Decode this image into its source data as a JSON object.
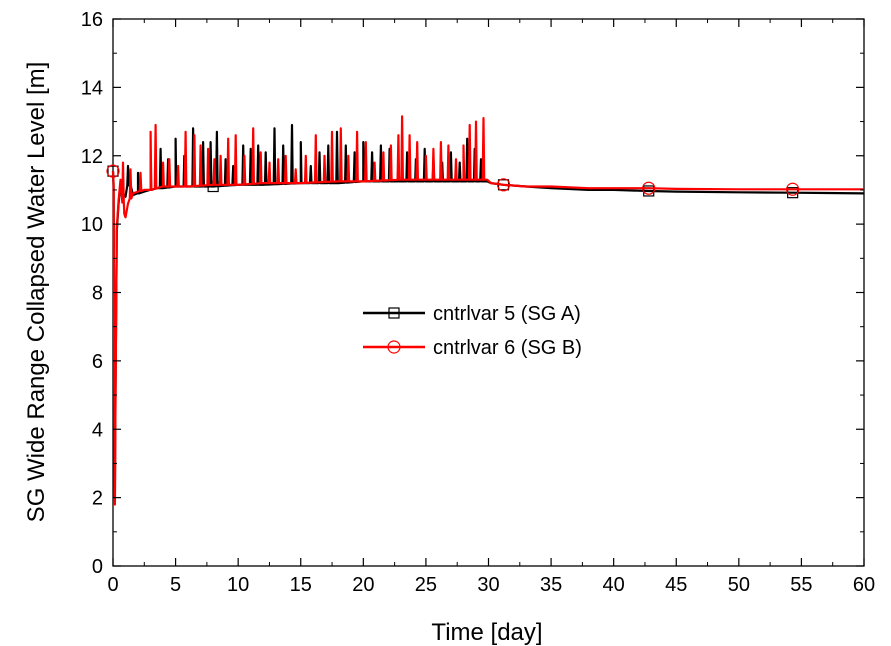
{
  "chart_data": {
    "type": "line",
    "title": "",
    "xlabel": "Time [day]",
    "ylabel": "SG Wide Range Collapsed Water Level [m]",
    "xlim": [
      0,
      60
    ],
    "ylim": [
      0,
      16
    ],
    "x_ticks": [
      0,
      5,
      10,
      15,
      20,
      25,
      30,
      35,
      40,
      45,
      50,
      55,
      60
    ],
    "y_ticks": [
      0,
      2,
      4,
      6,
      8,
      10,
      12,
      14,
      16
    ],
    "grid": false,
    "legend_position": "center",
    "series": [
      {
        "name": "cntrlvar 5 (SG A)",
        "color": "#000000",
        "marker": "square",
        "points": [
          [
            0,
            11.55
          ],
          [
            0.05,
            11.1
          ],
          [
            0.1,
            6.0
          ],
          [
            0.15,
            2.0
          ],
          [
            0.2,
            5.0
          ],
          [
            0.3,
            9.8
          ],
          [
            0.45,
            10.6
          ],
          [
            0.6,
            11.2
          ],
          [
            0.8,
            10.9
          ],
          [
            1.0,
            10.8
          ],
          [
            1.3,
            11.3
          ],
          [
            1.6,
            10.85
          ],
          [
            2.0,
            10.9
          ],
          [
            2.5,
            10.95
          ],
          [
            3.0,
            11.0
          ],
          [
            3.5,
            11.05
          ],
          [
            4.0,
            11.05
          ],
          [
            5.0,
            11.1
          ],
          [
            6.0,
            11.1
          ],
          [
            8.0,
            11.1
          ],
          [
            10.0,
            11.15
          ],
          [
            12.0,
            11.15
          ],
          [
            15.0,
            11.2
          ],
          [
            18.0,
            11.2
          ],
          [
            20.0,
            11.25
          ],
          [
            23.0,
            11.25
          ],
          [
            25.0,
            11.25
          ],
          [
            28.0,
            11.25
          ],
          [
            29.9,
            11.25
          ],
          [
            30.2,
            11.2
          ],
          [
            31.2,
            11.15
          ],
          [
            33.0,
            11.1
          ],
          [
            35.0,
            11.05
          ],
          [
            38.0,
            11.0
          ],
          [
            40.0,
            11.0
          ],
          [
            42.8,
            10.97
          ],
          [
            45.0,
            10.95
          ],
          [
            50.0,
            10.93
          ],
          [
            54.3,
            10.92
          ],
          [
            57.0,
            10.91
          ],
          [
            60.0,
            10.9
          ]
        ],
        "spikes": [
          [
            1.2,
            11.7
          ],
          [
            2.0,
            11.5
          ],
          [
            3.0,
            11.8
          ],
          [
            3.8,
            12.2
          ],
          [
            4.4,
            11.9
          ],
          [
            5.0,
            12.5
          ],
          [
            5.7,
            12.0
          ],
          [
            6.4,
            12.8
          ],
          [
            7.2,
            12.4
          ],
          [
            7.8,
            12.4
          ],
          [
            8.3,
            12.7
          ],
          [
            9.0,
            11.9
          ],
          [
            9.6,
            11.7
          ],
          [
            10.4,
            12.3
          ],
          [
            11.0,
            12.2
          ],
          [
            11.6,
            12.3
          ],
          [
            12.2,
            12.1
          ],
          [
            12.9,
            12.8
          ],
          [
            13.6,
            12.3
          ],
          [
            14.3,
            12.9
          ],
          [
            15.0,
            12.4
          ],
          [
            15.8,
            11.7
          ],
          [
            16.5,
            12.1
          ],
          [
            17.2,
            12.3
          ],
          [
            17.9,
            12.7
          ],
          [
            18.6,
            12.3
          ],
          [
            19.3,
            12.1
          ],
          [
            20.0,
            12.4
          ],
          [
            20.7,
            12.1
          ],
          [
            21.4,
            12.3
          ],
          [
            22.1,
            12.2
          ],
          [
            22.8,
            11.8
          ],
          [
            23.5,
            12.1
          ],
          [
            24.2,
            11.9
          ],
          [
            24.9,
            12.2
          ],
          [
            25.6,
            11.9
          ],
          [
            26.3,
            11.8
          ],
          [
            27.0,
            12.1
          ],
          [
            27.7,
            11.8
          ],
          [
            28.3,
            12.5
          ],
          [
            28.9,
            12.2
          ],
          [
            29.4,
            11.9
          ]
        ],
        "markers_x": [
          0,
          8.0,
          31.2,
          42.8,
          54.3
        ]
      },
      {
        "name": "cntrlvar 6 (SG B)",
        "color": "#ff0000",
        "marker": "circle",
        "points": [
          [
            0,
            11.55
          ],
          [
            0.05,
            11.2
          ],
          [
            0.1,
            5.5
          ],
          [
            0.15,
            1.8
          ],
          [
            0.2,
            4.8
          ],
          [
            0.3,
            9.9
          ],
          [
            0.45,
            10.7
          ],
          [
            0.6,
            11.3
          ],
          [
            0.9,
            10.3
          ],
          [
            1.0,
            10.2
          ],
          [
            1.2,
            10.6
          ],
          [
            1.6,
            10.9
          ],
          [
            2.0,
            10.95
          ],
          [
            2.5,
            11.0
          ],
          [
            3.0,
            11.0
          ],
          [
            3.5,
            11.05
          ],
          [
            4.0,
            11.1
          ],
          [
            5.0,
            11.1
          ],
          [
            6.0,
            11.1
          ],
          [
            8.0,
            11.15
          ],
          [
            10.0,
            11.15
          ],
          [
            12.0,
            11.2
          ],
          [
            15.0,
            11.2
          ],
          [
            18.0,
            11.25
          ],
          [
            20.0,
            11.25
          ],
          [
            23.0,
            11.3
          ],
          [
            25.0,
            11.3
          ],
          [
            28.0,
            11.3
          ],
          [
            29.9,
            11.3
          ],
          [
            30.2,
            11.2
          ],
          [
            31.2,
            11.15
          ],
          [
            33.0,
            11.1
          ],
          [
            35.0,
            11.1
          ],
          [
            38.0,
            11.05
          ],
          [
            40.0,
            11.05
          ],
          [
            42.8,
            11.05
          ],
          [
            45.0,
            11.03
          ],
          [
            50.0,
            11.02
          ],
          [
            54.3,
            11.02
          ],
          [
            57.0,
            11.02
          ],
          [
            60.0,
            11.02
          ]
        ],
        "spikes": [
          [
            0.8,
            11.8
          ],
          [
            1.4,
            11.6
          ],
          [
            2.2,
            11.5
          ],
          [
            3.0,
            12.7
          ],
          [
            3.4,
            12.9
          ],
          [
            4.0,
            11.8
          ],
          [
            4.5,
            11.9
          ],
          [
            5.2,
            11.7
          ],
          [
            5.8,
            12.7
          ],
          [
            6.5,
            12.6
          ],
          [
            7.0,
            12.3
          ],
          [
            7.6,
            12.2
          ],
          [
            8.1,
            11.9
          ],
          [
            8.6,
            12.0
          ],
          [
            9.2,
            12.5
          ],
          [
            9.8,
            12.6
          ],
          [
            10.5,
            12.0
          ],
          [
            11.2,
            12.8
          ],
          [
            11.8,
            12.1
          ],
          [
            12.5,
            11.8
          ],
          [
            13.2,
            11.9
          ],
          [
            13.8,
            12.0
          ],
          [
            14.6,
            11.6
          ],
          [
            15.4,
            12.0
          ],
          [
            16.2,
            12.6
          ],
          [
            16.9,
            12.0
          ],
          [
            17.5,
            12.7
          ],
          [
            18.2,
            12.8
          ],
          [
            18.8,
            12.0
          ],
          [
            19.5,
            12.7
          ],
          [
            20.2,
            12.4
          ],
          [
            20.9,
            11.8
          ],
          [
            21.6,
            12.1
          ],
          [
            22.2,
            12.3
          ],
          [
            22.8,
            12.6
          ],
          [
            23.1,
            13.15
          ],
          [
            23.7,
            12.6
          ],
          [
            24.3,
            12.4
          ],
          [
            25.0,
            12.0
          ],
          [
            25.6,
            12.2
          ],
          [
            26.2,
            12.4
          ],
          [
            26.8,
            12.3
          ],
          [
            27.4,
            11.9
          ],
          [
            28.0,
            12.3
          ],
          [
            28.5,
            12.9
          ],
          [
            29.0,
            13.0
          ],
          [
            29.6,
            13.1
          ]
        ],
        "markers_x": [
          0,
          31.2,
          42.8,
          54.3
        ]
      }
    ]
  }
}
